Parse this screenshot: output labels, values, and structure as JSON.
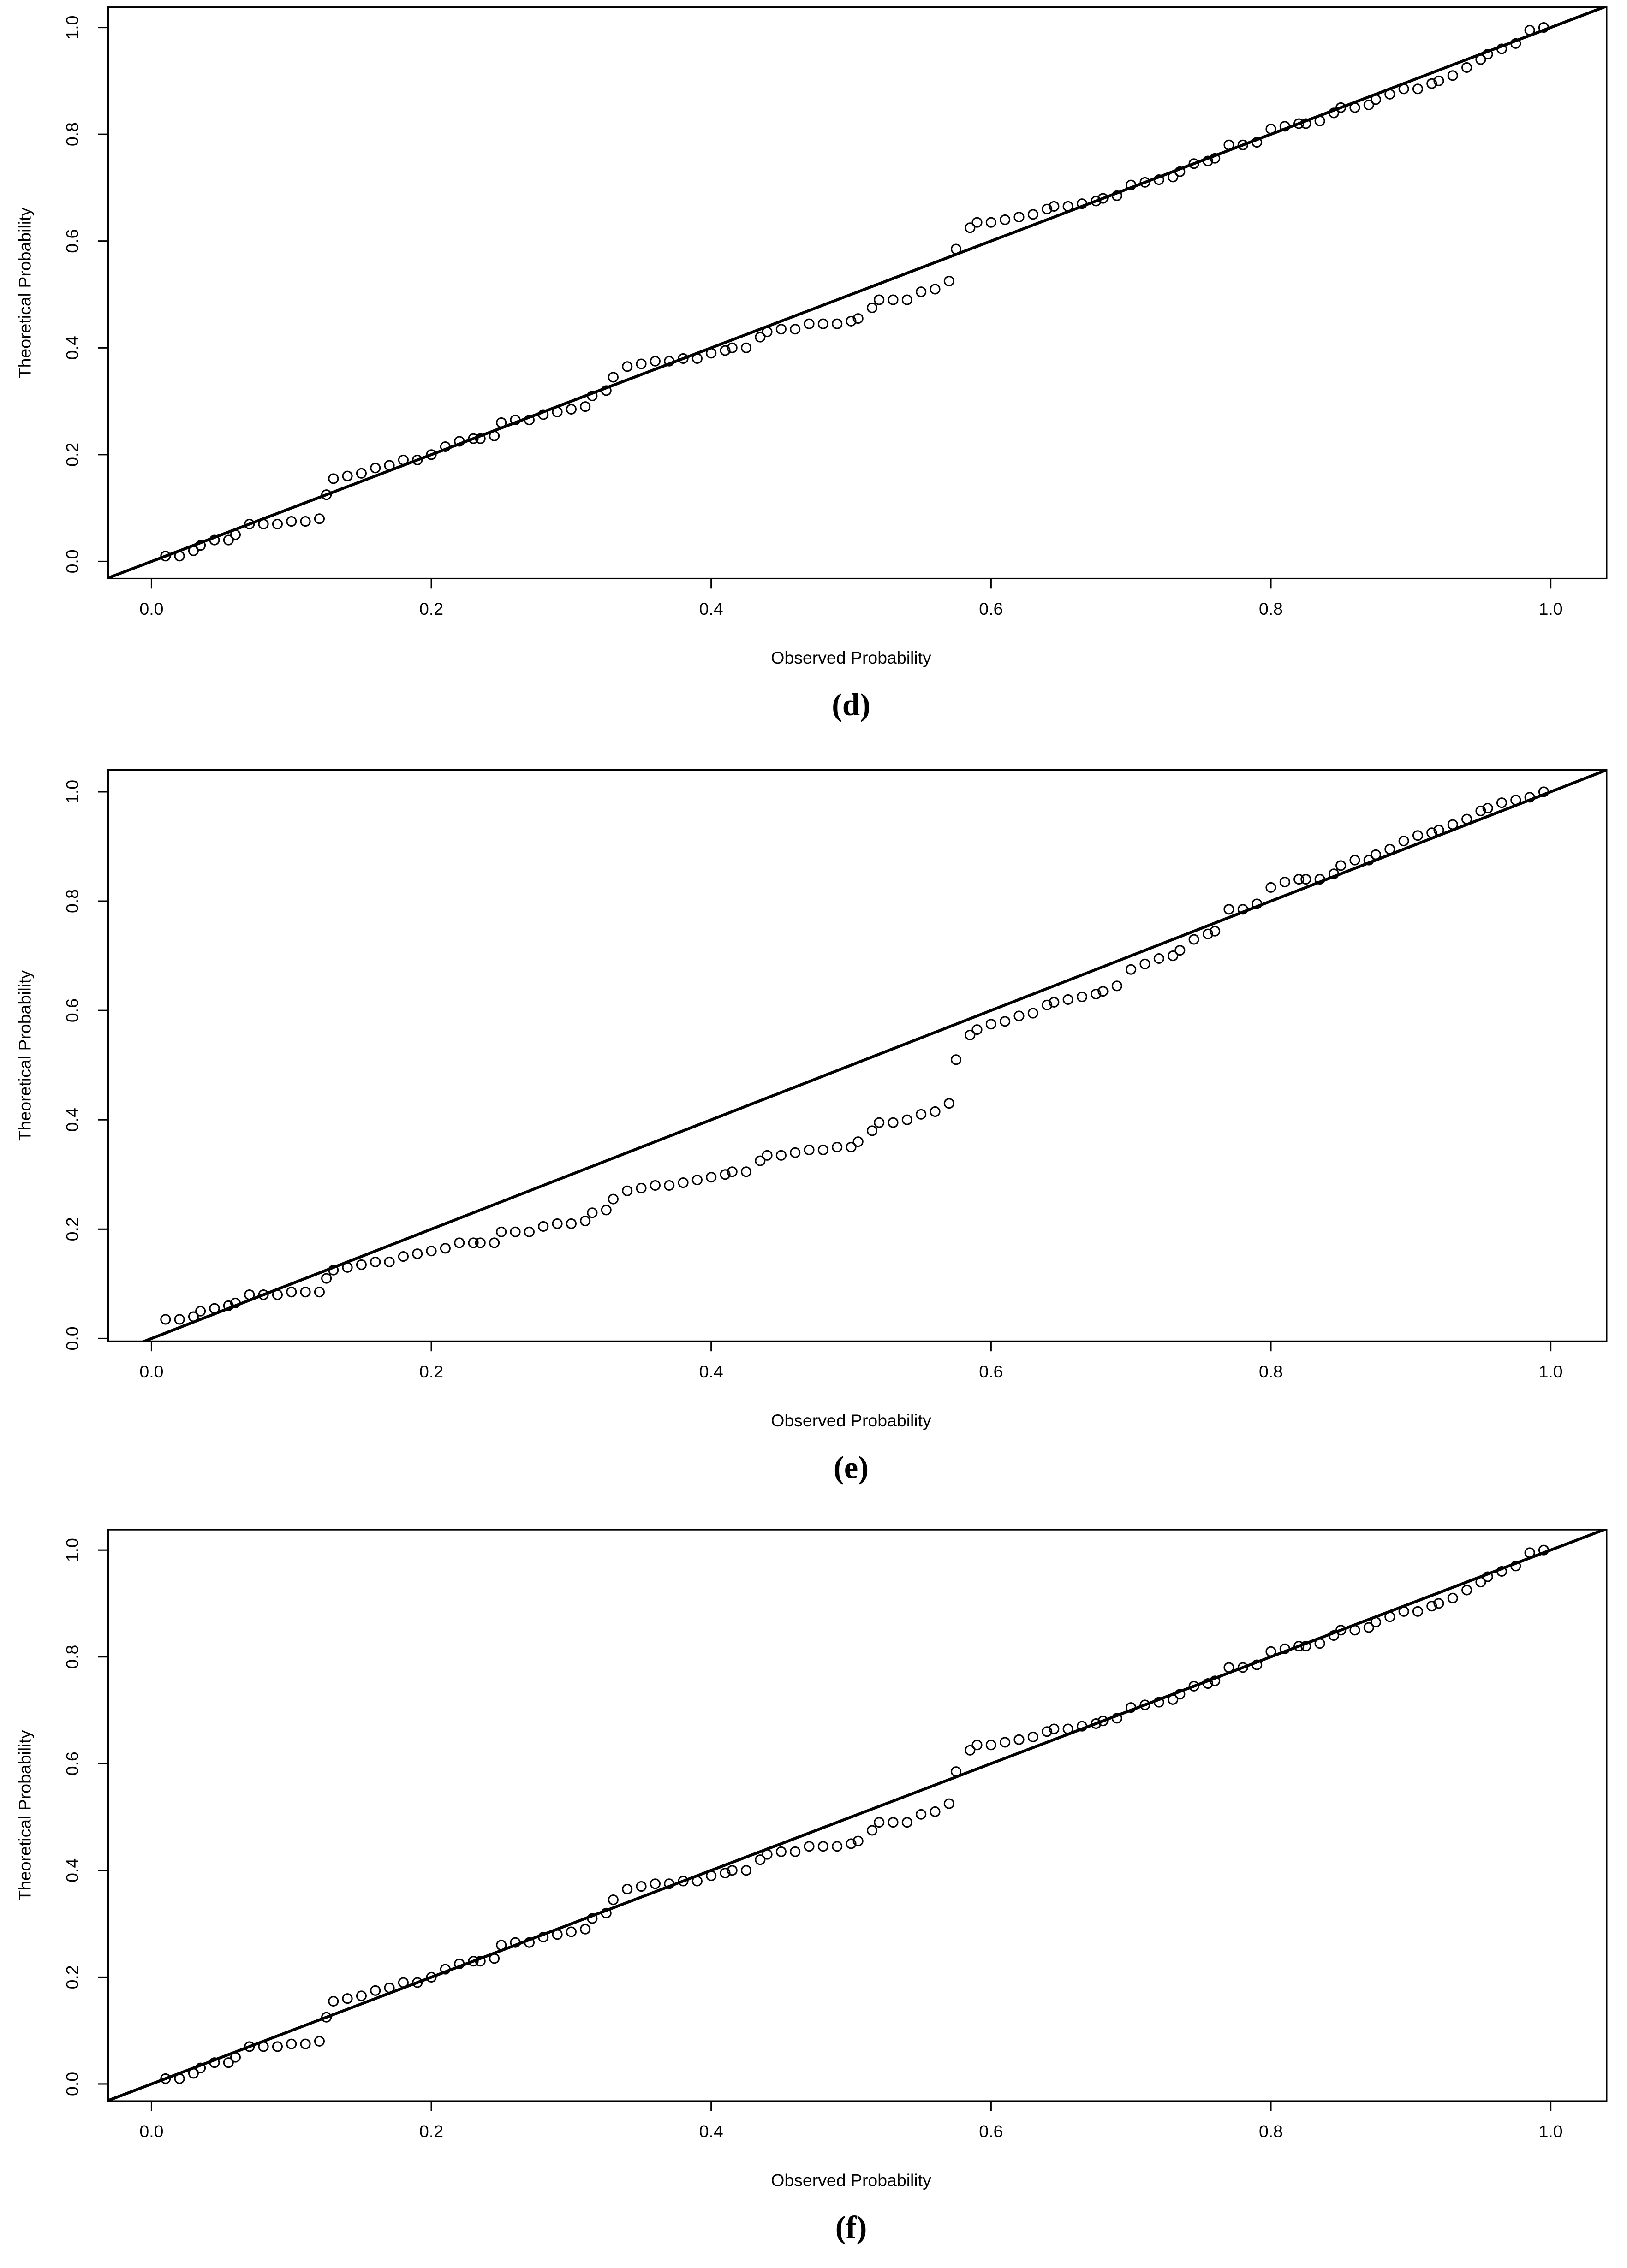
{
  "chart_data": [
    {
      "type": "scatter",
      "caption": "(d)",
      "x_label": "Observed Probability",
      "y_label": "Theoretical Probability",
      "x": [
        0.01,
        0.02,
        0.03,
        0.035,
        0.045,
        0.055,
        0.06,
        0.07,
        0.08,
        0.09,
        0.1,
        0.11,
        0.12,
        0.125,
        0.13,
        0.14,
        0.15,
        0.16,
        0.17,
        0.18,
        0.19,
        0.2,
        0.21,
        0.22,
        0.23,
        0.235,
        0.245,
        0.25,
        0.26,
        0.27,
        0.28,
        0.29,
        0.3,
        0.31,
        0.315,
        0.325,
        0.33,
        0.34,
        0.35,
        0.36,
        0.37,
        0.38,
        0.39,
        0.4,
        0.41,
        0.415,
        0.425,
        0.435,
        0.44,
        0.45,
        0.46,
        0.47,
        0.48,
        0.49,
        0.5,
        0.505,
        0.515,
        0.52,
        0.53,
        0.54,
        0.55,
        0.56,
        0.57,
        0.575,
        0.585,
        0.59,
        0.6,
        0.61,
        0.62,
        0.63,
        0.64,
        0.645,
        0.655,
        0.665,
        0.675,
        0.68,
        0.69,
        0.7,
        0.71,
        0.72,
        0.73,
        0.735,
        0.745,
        0.755,
        0.76,
        0.77,
        0.78,
        0.79,
        0.8,
        0.81,
        0.82,
        0.825,
        0.835,
        0.845,
        0.85,
        0.86,
        0.87,
        0.875,
        0.885,
        0.895,
        0.905,
        0.915,
        0.92,
        0.93,
        0.94,
        0.95,
        0.955,
        0.965,
        0.975,
        0.985,
        0.995
      ],
      "values": [
        0.01,
        0.01,
        0.02,
        0.03,
        0.04,
        0.04,
        0.05,
        0.07,
        0.07,
        0.07,
        0.075,
        0.075,
        0.08,
        0.125,
        0.155,
        0.16,
        0.165,
        0.175,
        0.18,
        0.19,
        0.19,
        0.2,
        0.215,
        0.225,
        0.23,
        0.23,
        0.235,
        0.26,
        0.265,
        0.265,
        0.275,
        0.28,
        0.285,
        0.29,
        0.31,
        0.32,
        0.345,
        0.365,
        0.37,
        0.375,
        0.375,
        0.38,
        0.38,
        0.39,
        0.395,
        0.4,
        0.4,
        0.42,
        0.43,
        0.435,
        0.435,
        0.445,
        0.445,
        0.445,
        0.45,
        0.455,
        0.475,
        0.49,
        0.49,
        0.49,
        0.505,
        0.51,
        0.525,
        0.585,
        0.625,
        0.635,
        0.635,
        0.64,
        0.645,
        0.65,
        0.66,
        0.665,
        0.665,
        0.67,
        0.675,
        0.68,
        0.685,
        0.705,
        0.71,
        0.715,
        0.72,
        0.73,
        0.745,
        0.75,
        0.755,
        0.78,
        0.78,
        0.785,
        0.81,
        0.815,
        0.82,
        0.82,
        0.825,
        0.84,
        0.85,
        0.85,
        0.855,
        0.865,
        0.875,
        0.885,
        0.885,
        0.895,
        0.9,
        0.91,
        0.925,
        0.94,
        0.95,
        0.96,
        0.97,
        0.995,
        1.0
      ],
      "color": "#000000",
      "diagonal": true,
      "xlim": [
        -0.031,
        1.04
      ],
      "ylim": [
        -0.032,
        1.038
      ],
      "xticks": [
        {
          "value": 0,
          "label": "0.0"
        },
        0.2,
        0.4,
        0.6,
        0.8,
        {
          "value": 1,
          "label": "1.0"
        }
      ],
      "yticks": [
        {
          "value": 0,
          "label": "0.0"
        },
        0.2,
        0.4,
        0.6,
        0.8,
        {
          "value": 1,
          "label": "1.0"
        }
      ]
    },
    {
      "type": "scatter",
      "caption": "(e)",
      "x_label": "Observed Probability",
      "y_label": "Theoretical Probability",
      "x": [
        0.01,
        0.02,
        0.03,
        0.035,
        0.045,
        0.055,
        0.06,
        0.07,
        0.08,
        0.09,
        0.1,
        0.11,
        0.12,
        0.125,
        0.13,
        0.14,
        0.15,
        0.16,
        0.17,
        0.18,
        0.19,
        0.2,
        0.21,
        0.22,
        0.23,
        0.235,
        0.245,
        0.25,
        0.26,
        0.27,
        0.28,
        0.29,
        0.3,
        0.31,
        0.315,
        0.325,
        0.33,
        0.34,
        0.35,
        0.36,
        0.37,
        0.38,
        0.39,
        0.4,
        0.41,
        0.415,
        0.425,
        0.435,
        0.44,
        0.45,
        0.46,
        0.47,
        0.48,
        0.49,
        0.5,
        0.505,
        0.515,
        0.52,
        0.53,
        0.54,
        0.55,
        0.56,
        0.57,
        0.575,
        0.585,
        0.59,
        0.6,
        0.61,
        0.62,
        0.63,
        0.64,
        0.645,
        0.655,
        0.665,
        0.675,
        0.68,
        0.69,
        0.7,
        0.71,
        0.72,
        0.73,
        0.735,
        0.745,
        0.755,
        0.76,
        0.77,
        0.78,
        0.79,
        0.8,
        0.81,
        0.82,
        0.825,
        0.835,
        0.845,
        0.85,
        0.86,
        0.87,
        0.875,
        0.885,
        0.895,
        0.905,
        0.915,
        0.92,
        0.93,
        0.94,
        0.95,
        0.955,
        0.965,
        0.975,
        0.985,
        0.995
      ],
      "values": [
        0.035,
        0.035,
        0.04,
        0.05,
        0.055,
        0.06,
        0.065,
        0.08,
        0.08,
        0.08,
        0.085,
        0.085,
        0.085,
        0.11,
        0.125,
        0.13,
        0.135,
        0.14,
        0.14,
        0.15,
        0.155,
        0.16,
        0.165,
        0.175,
        0.175,
        0.175,
        0.175,
        0.195,
        0.195,
        0.195,
        0.205,
        0.21,
        0.21,
        0.215,
        0.23,
        0.235,
        0.255,
        0.27,
        0.275,
        0.28,
        0.28,
        0.285,
        0.29,
        0.295,
        0.3,
        0.305,
        0.305,
        0.325,
        0.335,
        0.335,
        0.34,
        0.345,
        0.345,
        0.35,
        0.35,
        0.36,
        0.38,
        0.395,
        0.395,
        0.4,
        0.41,
        0.415,
        0.43,
        0.51,
        0.555,
        0.565,
        0.575,
        0.58,
        0.59,
        0.595,
        0.61,
        0.615,
        0.62,
        0.625,
        0.63,
        0.635,
        0.645,
        0.675,
        0.685,
        0.695,
        0.7,
        0.71,
        0.73,
        0.74,
        0.745,
        0.785,
        0.785,
        0.795,
        0.825,
        0.835,
        0.84,
        0.84,
        0.84,
        0.85,
        0.865,
        0.875,
        0.875,
        0.885,
        0.895,
        0.91,
        0.92,
        0.925,
        0.93,
        0.94,
        0.95,
        0.965,
        0.97,
        0.98,
        0.985,
        0.99,
        1.0
      ],
      "color": "#000000",
      "diagonal": true,
      "xlim": [
        -0.031,
        1.04
      ],
      "ylim": [
        -0.005,
        1.04
      ],
      "xticks": [
        {
          "value": 0,
          "label": "0.0"
        },
        0.2,
        0.4,
        0.6,
        0.8,
        {
          "value": 1,
          "label": "1.0"
        }
      ],
      "yticks": [
        {
          "value": 0,
          "label": "0.0"
        },
        0.2,
        0.4,
        0.6,
        0.8,
        {
          "value": 1,
          "label": "1.0"
        }
      ]
    },
    {
      "type": "scatter",
      "caption": "(f)",
      "x_label": "Observed Probability",
      "y_label": "Theoretical Probability",
      "x": [
        0.01,
        0.02,
        0.03,
        0.035,
        0.045,
        0.055,
        0.06,
        0.07,
        0.08,
        0.09,
        0.1,
        0.11,
        0.12,
        0.125,
        0.13,
        0.14,
        0.15,
        0.16,
        0.17,
        0.18,
        0.19,
        0.2,
        0.21,
        0.22,
        0.23,
        0.235,
        0.245,
        0.25,
        0.26,
        0.27,
        0.28,
        0.29,
        0.3,
        0.31,
        0.315,
        0.325,
        0.33,
        0.34,
        0.35,
        0.36,
        0.37,
        0.38,
        0.39,
        0.4,
        0.41,
        0.415,
        0.425,
        0.435,
        0.44,
        0.45,
        0.46,
        0.47,
        0.48,
        0.49,
        0.5,
        0.505,
        0.515,
        0.52,
        0.53,
        0.54,
        0.55,
        0.56,
        0.57,
        0.575,
        0.585,
        0.59,
        0.6,
        0.61,
        0.62,
        0.63,
        0.64,
        0.645,
        0.655,
        0.665,
        0.675,
        0.68,
        0.69,
        0.7,
        0.71,
        0.72,
        0.73,
        0.735,
        0.745,
        0.755,
        0.76,
        0.77,
        0.78,
        0.79,
        0.8,
        0.81,
        0.82,
        0.825,
        0.835,
        0.845,
        0.85,
        0.86,
        0.87,
        0.875,
        0.885,
        0.895,
        0.905,
        0.915,
        0.92,
        0.93,
        0.94,
        0.95,
        0.955,
        0.965,
        0.975,
        0.985,
        0.995
      ],
      "values": [
        0.01,
        0.01,
        0.02,
        0.03,
        0.04,
        0.04,
        0.05,
        0.07,
        0.07,
        0.07,
        0.075,
        0.075,
        0.08,
        0.125,
        0.155,
        0.16,
        0.165,
        0.175,
        0.18,
        0.19,
        0.19,
        0.2,
        0.215,
        0.225,
        0.23,
        0.23,
        0.235,
        0.26,
        0.265,
        0.265,
        0.275,
        0.28,
        0.285,
        0.29,
        0.31,
        0.32,
        0.345,
        0.365,
        0.37,
        0.375,
        0.375,
        0.38,
        0.38,
        0.39,
        0.395,
        0.4,
        0.4,
        0.42,
        0.43,
        0.435,
        0.435,
        0.445,
        0.445,
        0.445,
        0.45,
        0.455,
        0.475,
        0.49,
        0.49,
        0.49,
        0.505,
        0.51,
        0.525,
        0.585,
        0.625,
        0.635,
        0.635,
        0.64,
        0.645,
        0.65,
        0.66,
        0.665,
        0.665,
        0.67,
        0.675,
        0.68,
        0.685,
        0.705,
        0.71,
        0.715,
        0.72,
        0.73,
        0.745,
        0.75,
        0.755,
        0.78,
        0.78,
        0.785,
        0.81,
        0.815,
        0.82,
        0.82,
        0.825,
        0.84,
        0.85,
        0.85,
        0.855,
        0.865,
        0.875,
        0.885,
        0.885,
        0.895,
        0.9,
        0.91,
        0.925,
        0.94,
        0.95,
        0.96,
        0.97,
        0.995,
        1.0
      ],
      "color": "#000000",
      "diagonal": true,
      "xlim": [
        -0.031,
        1.04
      ],
      "ylim": [
        -0.032,
        1.038
      ],
      "xticks": [
        {
          "value": 0,
          "label": "0.0"
        },
        0.2,
        0.4,
        0.6,
        0.8,
        {
          "value": 1,
          "label": "1.0"
        }
      ],
      "yticks": [
        {
          "value": 0,
          "label": "0.0"
        },
        0.2,
        0.4,
        0.6,
        0.8,
        {
          "value": 1,
          "label": "1.0"
        }
      ]
    }
  ]
}
